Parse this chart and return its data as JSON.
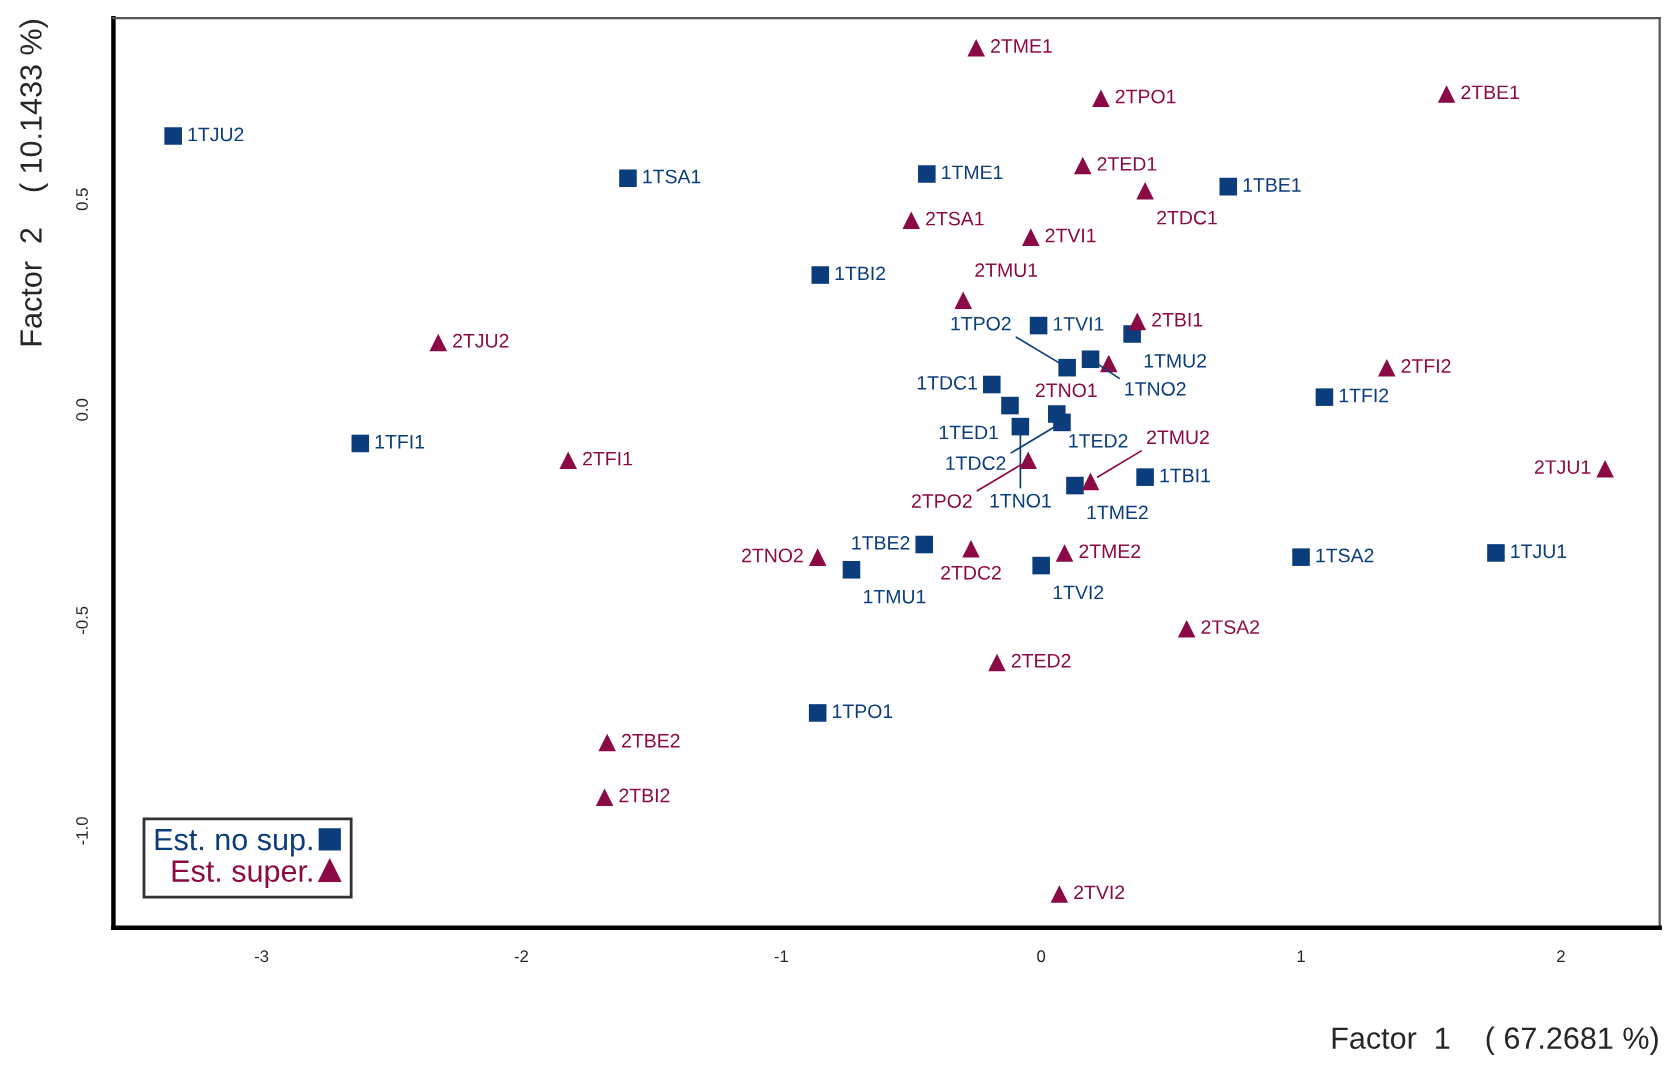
{
  "chart_data": {
    "type": "scatter",
    "xlabel": "Factor  1    ( 67.2681 %)",
    "ylabel": "Factor  2    ( 10.1433 %)",
    "xlim": [
      -3.57,
      2.38
    ],
    "ylim": [
      -1.23,
      0.93
    ],
    "xticks": [
      -3,
      -2,
      -1,
      0,
      1,
      2
    ],
    "yticks": [
      {
        "value": 0.5,
        "label": "0.5"
      },
      {
        "value": 0,
        "label": "0.0"
      },
      -0.5,
      {
        "value": -1,
        "label": "-1.0"
      }
    ],
    "grid": false,
    "legend": "bottom left",
    "series": [
      {
        "name": "Est. no sup.",
        "color": "#0b3d7c",
        "marker": "square",
        "x": [
          -3.34,
          -1.59,
          -0.44,
          0.72,
          -0.85,
          -2.62,
          1.09,
          1.0,
          1.75,
          -0.86,
          -0.01,
          0.35,
          0.19,
          0.1,
          -0.19,
          -0.12,
          0.06,
          0.08,
          -0.08,
          0.4,
          0.13,
          -0.45,
          0.0,
          -0.73
        ],
        "values": [
          0.65,
          0.55,
          0.56,
          0.53,
          0.32,
          -0.08,
          0.03,
          -0.35,
          -0.34,
          -0.72,
          0.2,
          0.18,
          0.12,
          0.1,
          0.06,
          0.01,
          -0.01,
          -0.03,
          -0.04,
          -0.16,
          -0.18,
          -0.32,
          -0.37,
          -0.38
        ]
      },
      {
        "name": "Est. super.",
        "color": "#8b0a45",
        "marker": "triangle",
        "x": [
          -0.25,
          0.23,
          1.56,
          0.16,
          0.4,
          -0.5,
          -0.04,
          -0.3,
          0.37,
          0.26,
          1.33,
          2.17,
          -0.05,
          0.19,
          -0.27,
          0.09,
          -2.32,
          -1.82,
          -0.86,
          0.56,
          -0.17,
          -1.67,
          -1.68,
          0.07
        ],
        "values": [
          0.86,
          0.74,
          0.75,
          0.58,
          0.52,
          0.45,
          0.41,
          0.26,
          0.21,
          0.11,
          0.1,
          -0.14,
          -0.12,
          -0.17,
          -0.33,
          -0.34,
          0.16,
          -0.12,
          -0.35,
          -0.52,
          -0.6,
          -0.79,
          -0.92,
          -1.15
        ]
      }
    ],
    "annotations": [
      {
        "text": "1TJU2",
        "x": -3.34,
        "y": 0.65
      },
      {
        "text": "1TSA1",
        "x": -1.59,
        "y": 0.55
      },
      {
        "text": "1TME1",
        "x": -0.44,
        "y": 0.56
      },
      {
        "text": "1TBE1",
        "x": 0.72,
        "y": 0.53
      },
      {
        "text": "1TBI2",
        "x": -0.85,
        "y": 0.32
      },
      {
        "text": "1TFI1",
        "x": -2.62,
        "y": -0.08
      },
      {
        "text": "1TFI2",
        "x": 1.09,
        "y": 0.03
      },
      {
        "text": "1TSA2",
        "x": 1.0,
        "y": -0.35
      },
      {
        "text": "1TJU1",
        "x": 1.75,
        "y": -0.34
      },
      {
        "text": "1TPO1",
        "x": -0.86,
        "y": -0.72
      },
      {
        "text": "1TVI1",
        "x": -0.01,
        "y": 0.2
      },
      {
        "text": "1TMU2",
        "x": 0.35,
        "y": 0.18
      },
      {
        "text": "1TNO2",
        "x": 0.19,
        "y": 0.12
      },
      {
        "text": "1TPO2",
        "x": 0.1,
        "y": 0.1
      },
      {
        "text": "1TDC1",
        "x": -0.19,
        "y": 0.06
      },
      {
        "text": "1TED1",
        "x": -0.12,
        "y": 0.01
      },
      {
        "text": "1TED2",
        "x": 0.06,
        "y": -0.01
      },
      {
        "text": "1TDC2",
        "x": 0.08,
        "y": -0.03
      },
      {
        "text": "1TNO1",
        "x": -0.08,
        "y": -0.04
      },
      {
        "text": "1TBI1",
        "x": 0.4,
        "y": -0.16
      },
      {
        "text": "1TME2",
        "x": 0.13,
        "y": -0.18
      },
      {
        "text": "1TBE2",
        "x": -0.45,
        "y": -0.32
      },
      {
        "text": "1TVI2",
        "x": 0.0,
        "y": -0.37
      },
      {
        "text": "1TMU1",
        "x": -0.73,
        "y": -0.38
      },
      {
        "text": "2TME1",
        "x": -0.25,
        "y": 0.86
      },
      {
        "text": "2TPO1",
        "x": 0.23,
        "y": 0.74
      },
      {
        "text": "2TBE1",
        "x": 1.56,
        "y": 0.75
      },
      {
        "text": "2TED1",
        "x": 0.16,
        "y": 0.58
      },
      {
        "text": "2TDC1",
        "x": 0.4,
        "y": 0.52
      },
      {
        "text": "2TSA1",
        "x": -0.5,
        "y": 0.45
      },
      {
        "text": "2TVI1",
        "x": -0.04,
        "y": 0.41
      },
      {
        "text": "2TMU1",
        "x": -0.3,
        "y": 0.26
      },
      {
        "text": "2TBI1",
        "x": 0.37,
        "y": 0.21
      },
      {
        "text": "2TNO1",
        "x": 0.26,
        "y": 0.11
      },
      {
        "text": "2TFI2",
        "x": 1.33,
        "y": 0.1
      },
      {
        "text": "2TJU1",
        "x": 2.17,
        "y": -0.14
      },
      {
        "text": "2TPO2",
        "x": -0.05,
        "y": -0.12
      },
      {
        "text": "2TMU2",
        "x": 0.19,
        "y": -0.17
      },
      {
        "text": "2TDC2",
        "x": -0.27,
        "y": -0.33
      },
      {
        "text": "2TME2",
        "x": 0.09,
        "y": -0.34
      },
      {
        "text": "2TJU2",
        "x": -2.32,
        "y": 0.16
      },
      {
        "text": "2TFI1",
        "x": -1.82,
        "y": -0.12
      },
      {
        "text": "2TNO2",
        "x": -0.86,
        "y": -0.35
      },
      {
        "text": "2TSA2",
        "x": 0.56,
        "y": -0.52
      },
      {
        "text": "2TED2",
        "x": -0.17,
        "y": -0.6
      },
      {
        "text": "2TBE2",
        "x": -1.67,
        "y": -0.79
      },
      {
        "text": "2TBI2",
        "x": -1.68,
        "y": -0.92
      },
      {
        "text": "2TVI2",
        "x": 0.07,
        "y": -1.15
      }
    ]
  }
}
